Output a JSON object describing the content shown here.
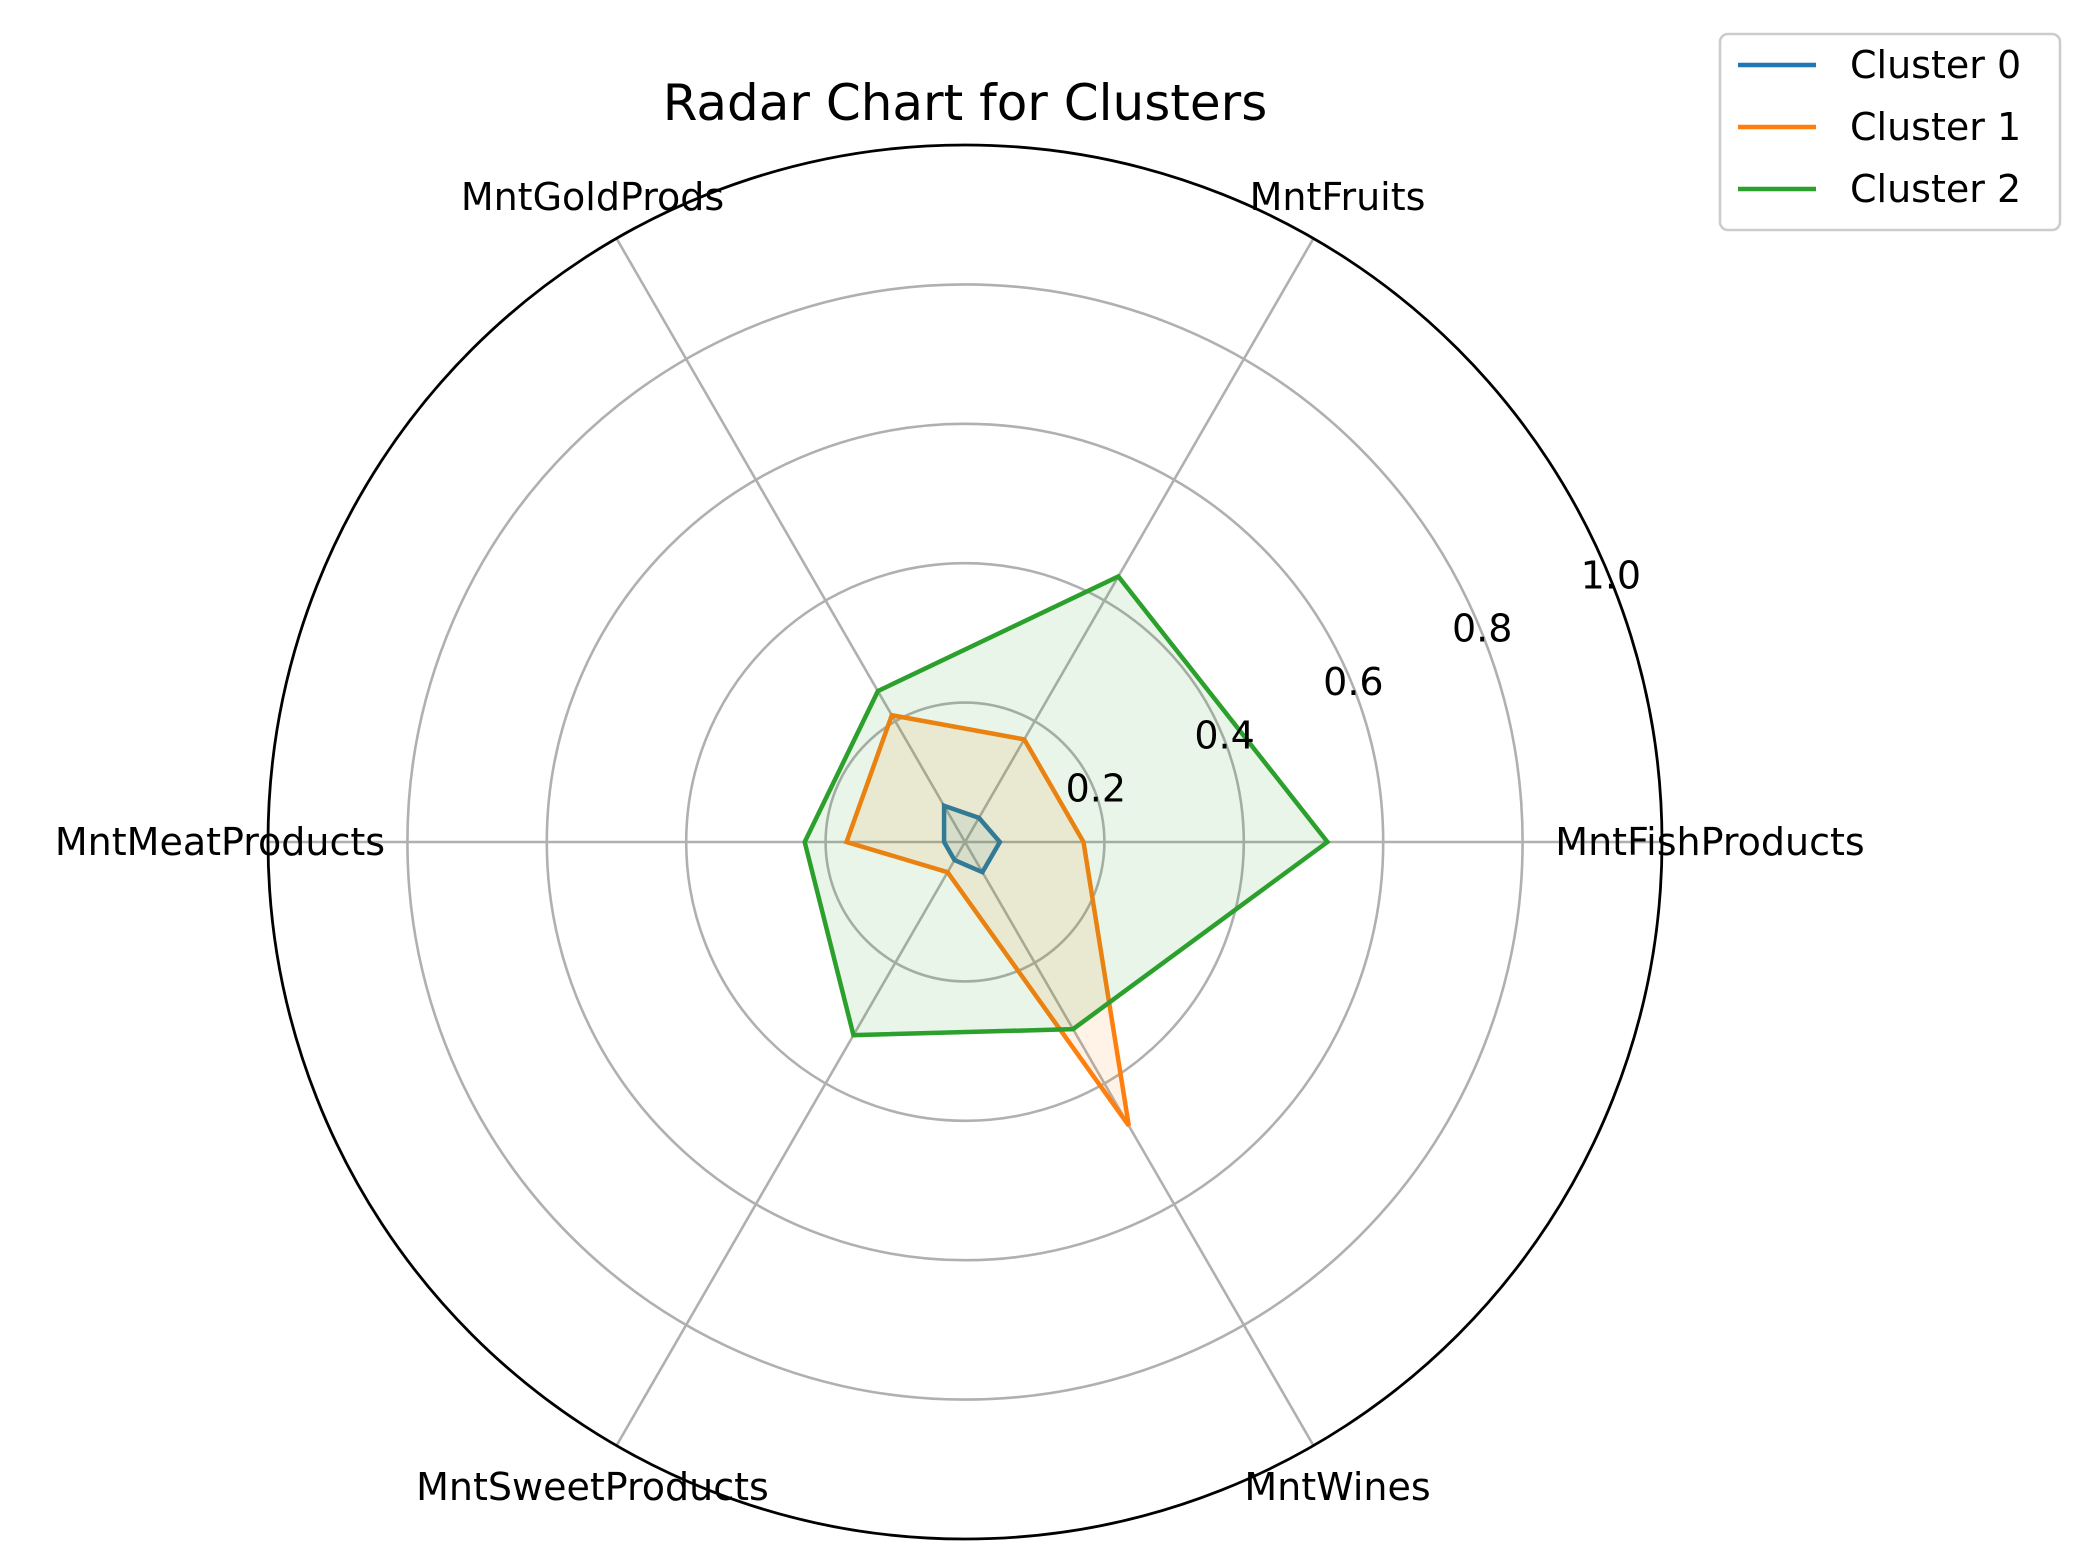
{
  "chart_data": {
    "type": "radar",
    "title": "Radar Chart for Clusters",
    "categories": [
      "MntFishProducts",
      "MntFruits",
      "MntGoldProds",
      "MntMeatProducts",
      "MntSweetProducts",
      "MntWines"
    ],
    "rlim": [
      0,
      1.0
    ],
    "rticks": [
      "0.2",
      "0.4",
      "0.6",
      "0.8",
      "1.0"
    ],
    "grid": true,
    "legend_position": "top-right",
    "series": [
      {
        "name": "Cluster 0",
        "color": "#1f77b4",
        "values": [
          0.05,
          0.04,
          0.06,
          0.03,
          0.03,
          0.05
        ],
        "fill_opacity": 0.1
      },
      {
        "name": "Cluster 1",
        "color": "#ff7f0e",
        "values": [
          0.17,
          0.17,
          0.21,
          0.17,
          0.05,
          0.47
        ],
        "fill_opacity": 0.1
      },
      {
        "name": "Cluster 2",
        "color": "#2ca02c",
        "values": [
          0.52,
          0.44,
          0.25,
          0.23,
          0.32,
          0.31
        ],
        "fill_opacity": 0.1
      }
    ]
  }
}
